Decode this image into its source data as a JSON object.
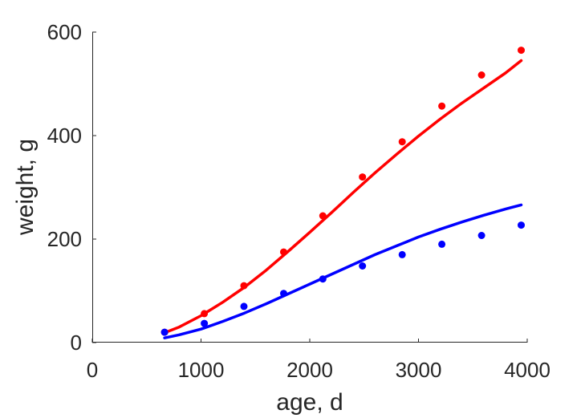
{
  "chart_data": {
    "type": "scatter",
    "title": "",
    "xlabel": "age, d",
    "ylabel": "weight, g",
    "xlim": [
      0,
      4000
    ],
    "ylim": [
      0,
      600
    ],
    "xticks": [
      "0",
      "1000",
      "2000",
      "3000",
      "4000"
    ],
    "yticks": [
      "0",
      "200",
      "400",
      "600"
    ],
    "grid": false,
    "legend": "none",
    "series": [
      {
        "color": "#ff0000",
        "points": {
          "x": [
            665,
            1030,
            1395,
            1760,
            2120,
            2485,
            2850,
            3215,
            3580,
            3945
          ],
          "y": [
            20,
            56,
            110,
            175,
            245,
            320,
            388,
            457,
            517,
            565
          ]
        },
        "curve": {
          "x": [
            665,
            800,
            1000,
            1200,
            1400,
            1600,
            1800,
            2000,
            2200,
            2400,
            2600,
            2800,
            3000,
            3200,
            3400,
            3600,
            3800,
            3945
          ],
          "y": [
            19,
            30,
            52,
            78,
            107,
            140,
            176,
            213,
            251,
            290,
            328,
            364,
            399,
            432,
            463,
            492,
            521,
            545
          ]
        }
      },
      {
        "color": "#0000ff",
        "points": {
          "x": [
            665,
            1030,
            1395,
            1760,
            2120,
            2485,
            2850,
            3215,
            3580,
            3945
          ],
          "y": [
            20,
            37,
            70,
            95,
            123,
            148,
            170,
            190,
            207,
            227
          ]
        },
        "curve": {
          "x": [
            665,
            800,
            1000,
            1200,
            1400,
            1600,
            1800,
            2000,
            2200,
            2400,
            2600,
            2800,
            3000,
            3200,
            3400,
            3600,
            3800,
            3945
          ],
          "y": [
            9,
            15,
            26,
            41,
            57,
            75,
            94,
            113,
            132,
            151,
            170,
            187,
            204,
            219,
            233,
            246,
            258,
            266
          ]
        }
      }
    ]
  }
}
